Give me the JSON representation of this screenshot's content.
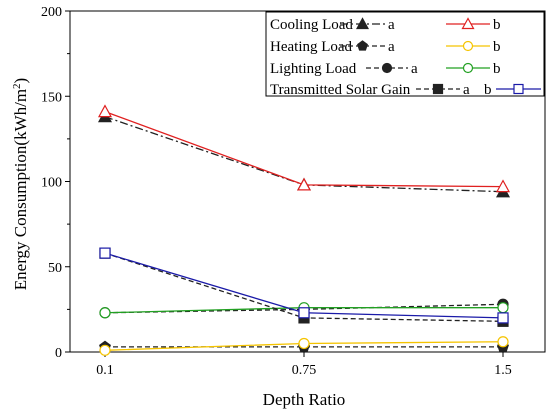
{
  "chart_data": {
    "type": "line",
    "title": "",
    "xlabel": "Depth Ratio",
    "ylabel": "Energy Consumption(kWh/m",
    "ylabel_sup": "2",
    "ylabel_close": ")",
    "categories": [
      "0.1",
      "0.75",
      "1.5"
    ],
    "ylim": [
      0,
      200
    ],
    "yticks": [
      "0",
      "50",
      "100",
      "150",
      "200"
    ],
    "grid": false,
    "legend_position": "top-right",
    "legend": [
      {
        "label": "Cooling Load",
        "a": "a",
        "b": "b"
      },
      {
        "label": "Heating Load",
        "a": "a",
        "b": "b"
      },
      {
        "label": "Lighting Load",
        "a": "a",
        "b": "b"
      },
      {
        "label": "Transmitted Solar Gain",
        "a": "a",
        "b": "b"
      }
    ],
    "series": [
      {
        "group": 0,
        "variant": "a",
        "values": [
          138,
          98,
          94
        ],
        "color": "#222222",
        "dash": "8,3,2,3",
        "marker": "triangle-filled"
      },
      {
        "group": 0,
        "variant": "b",
        "values": [
          141,
          98,
          97
        ],
        "color": "#e02020",
        "dash": "",
        "marker": "triangle-open"
      },
      {
        "group": 1,
        "variant": "a",
        "values": [
          3,
          3,
          3
        ],
        "color": "#222222",
        "dash": "5,3",
        "marker": "pentagon-filled"
      },
      {
        "group": 1,
        "variant": "b",
        "values": [
          1,
          5,
          6
        ],
        "color": "#f5c400",
        "dash": "",
        "marker": "circle-open"
      },
      {
        "group": 2,
        "variant": "a",
        "values": [
          23,
          25,
          28
        ],
        "color": "#222222",
        "dash": "5,3",
        "marker": "circle-filled"
      },
      {
        "group": 2,
        "variant": "b",
        "values": [
          23,
          26,
          26
        ],
        "color": "#22a022",
        "dash": "",
        "marker": "circle-open"
      },
      {
        "group": 3,
        "variant": "a",
        "values": [
          58,
          20,
          18
        ],
        "color": "#222222",
        "dash": "5,3",
        "marker": "square-filled"
      },
      {
        "group": 3,
        "variant": "b",
        "values": [
          58,
          23,
          20
        ],
        "color": "#1a1aa8",
        "dash": "",
        "marker": "square-open"
      }
    ]
  }
}
